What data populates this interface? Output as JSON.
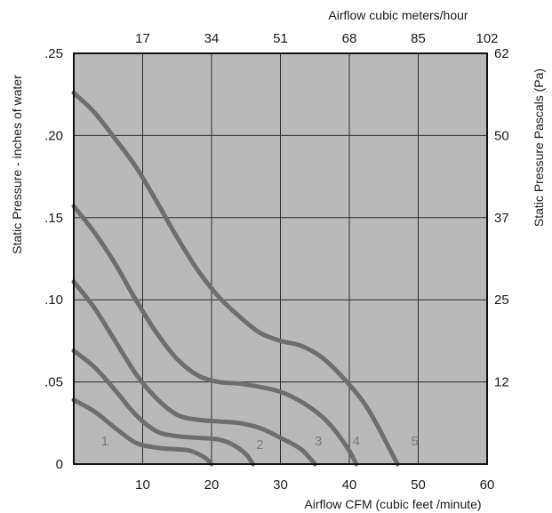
{
  "chart_data": {
    "type": "line",
    "xlabel_bottom": "Airflow  CFM (cubic feet /minute)",
    "xlabel_top": "Airflow cubic meters/hour",
    "ylabel_left": "Static Pressure - inches of water",
    "ylabel_right": "Static Pressure Pascals (Pa)",
    "xlim": [
      0,
      60
    ],
    "ylim": [
      0,
      0.25
    ],
    "grid": true,
    "x_ticks_bottom": [
      {
        "value": 10,
        "label": "10"
      },
      {
        "value": 20,
        "label": "20"
      },
      {
        "value": 30,
        "label": "30"
      },
      {
        "value": 40,
        "label": "40"
      },
      {
        "value": 50,
        "label": "50"
      },
      {
        "value": 60,
        "label": "60"
      }
    ],
    "x_ticks_top": [
      {
        "value": 10,
        "label": "17"
      },
      {
        "value": 20,
        "label": "34"
      },
      {
        "value": 30,
        "label": "51"
      },
      {
        "value": 40,
        "label": "68"
      },
      {
        "value": 50,
        "label": "85"
      },
      {
        "value": 60,
        "label": "102"
      }
    ],
    "y_ticks_left": [
      {
        "value": 0,
        "label": "0"
      },
      {
        "value": 0.05,
        "label": ".05"
      },
      {
        "value": 0.1,
        "label": ".10"
      },
      {
        "value": 0.15,
        "label": ".15"
      },
      {
        "value": 0.2,
        "label": ".20"
      },
      {
        "value": 0.25,
        "label": ".25"
      }
    ],
    "y_ticks_right": [
      {
        "value": 0.05,
        "label": "12"
      },
      {
        "value": 0.1,
        "label": "25"
      },
      {
        "value": 0.15,
        "label": "37"
      },
      {
        "value": 0.2,
        "label": "50"
      },
      {
        "value": 0.25,
        "label": "62"
      }
    ],
    "series": [
      {
        "name": "1",
        "label_at": [
          4.5,
          0.014
        ],
        "points": [
          [
            0,
            0.039
          ],
          [
            3,
            0.032
          ],
          [
            6,
            0.022
          ],
          [
            9,
            0.013
          ],
          [
            12,
            0.01
          ],
          [
            15,
            0.009
          ],
          [
            17,
            0.008
          ],
          [
            19,
            0.004
          ],
          [
            20,
            0
          ]
        ]
      },
      {
        "name": "2",
        "label_at": [
          27,
          0.012
        ],
        "points": [
          [
            0,
            0.069
          ],
          [
            3,
            0.059
          ],
          [
            6,
            0.045
          ],
          [
            9,
            0.03
          ],
          [
            12,
            0.02
          ],
          [
            15,
            0.017
          ],
          [
            18,
            0.016
          ],
          [
            21,
            0.015
          ],
          [
            23,
            0.012
          ],
          [
            25,
            0.006
          ],
          [
            26,
            0
          ]
        ]
      },
      {
        "name": "3",
        "label_at": [
          35.5,
          0.014
        ],
        "points": [
          [
            0,
            0.111
          ],
          [
            3,
            0.095
          ],
          [
            6,
            0.075
          ],
          [
            9,
            0.055
          ],
          [
            12,
            0.04
          ],
          [
            15,
            0.03
          ],
          [
            18,
            0.027
          ],
          [
            21,
            0.026
          ],
          [
            24,
            0.025
          ],
          [
            27,
            0.022
          ],
          [
            30,
            0.016
          ],
          [
            33,
            0.009
          ],
          [
            35,
            0
          ]
        ]
      },
      {
        "name": "4",
        "label_at": [
          41,
          0.014
        ],
        "points": [
          [
            0,
            0.157
          ],
          [
            3,
            0.141
          ],
          [
            6,
            0.122
          ],
          [
            9,
            0.1
          ],
          [
            12,
            0.08
          ],
          [
            15,
            0.064
          ],
          [
            18,
            0.054
          ],
          [
            21,
            0.05
          ],
          [
            24,
            0.049
          ],
          [
            27,
            0.047
          ],
          [
            30,
            0.044
          ],
          [
            33,
            0.038
          ],
          [
            36,
            0.029
          ],
          [
            38,
            0.02
          ],
          [
            40,
            0.008
          ],
          [
            41,
            0
          ]
        ]
      },
      {
        "name": "5",
        "label_at": [
          49.5,
          0.014
        ],
        "points": [
          [
            0,
            0.226
          ],
          [
            3,
            0.214
          ],
          [
            6,
            0.198
          ],
          [
            9,
            0.181
          ],
          [
            12,
            0.16
          ],
          [
            15,
            0.138
          ],
          [
            18,
            0.118
          ],
          [
            21,
            0.102
          ],
          [
            24,
            0.09
          ],
          [
            27,
            0.08
          ],
          [
            30,
            0.075
          ],
          [
            33,
            0.072
          ],
          [
            36,
            0.065
          ],
          [
            39,
            0.053
          ],
          [
            42,
            0.038
          ],
          [
            44,
            0.024
          ],
          [
            46,
            0.008
          ],
          [
            47,
            0
          ]
        ]
      }
    ]
  }
}
